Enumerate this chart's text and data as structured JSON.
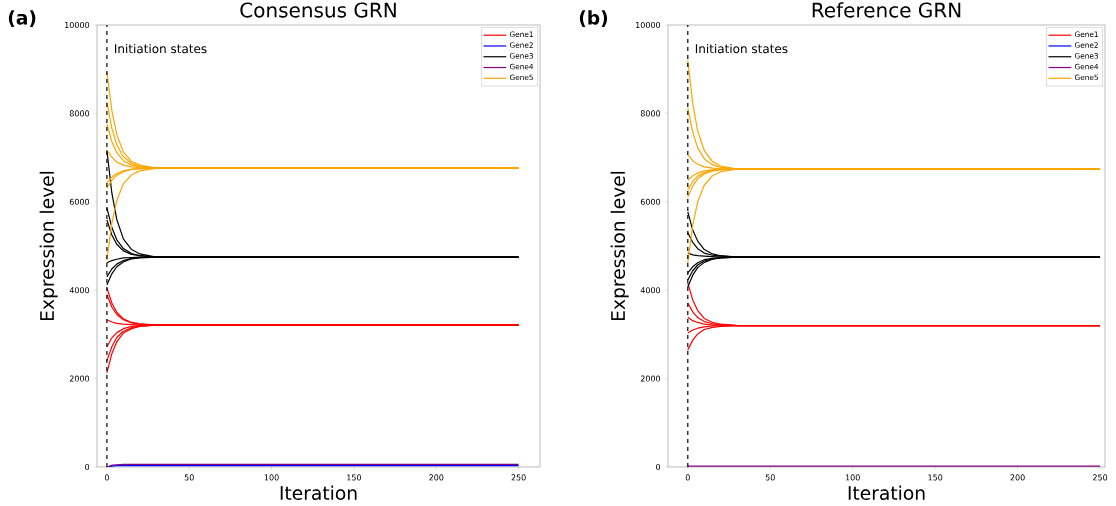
{
  "chart_data": [
    {
      "type": "line",
      "title": "Consensus GRN",
      "xlabel": "Iteration",
      "ylabel": "Expression level",
      "annotations": [
        "(a)"
      ],
      "legend": "top right",
      "x": [
        0,
        3,
        6,
        10,
        15,
        20,
        30,
        250
      ],
      "xlim": [
        -6,
        263
      ],
      "xticks": [
        0,
        50,
        100,
        150,
        200,
        250
      ],
      "ylim": [
        0,
        10000
      ],
      "yticks": [
        0,
        2000,
        4000,
        6000,
        8000,
        10000
      ],
      "ref_lines": [
        {
          "axis": "x",
          "value": 0,
          "label": "Initiation states",
          "color": "#000000",
          "line_style": "dashed"
        }
      ],
      "series": [
        {
          "name": "Gene1",
          "color": "#ff0000",
          "values": [
            4050,
            3710,
            3500,
            3350,
            3270,
            3240,
            3210,
            3210
          ]
        },
        {
          "color": "#ff0000",
          "values": [
            3900,
            3620,
            3450,
            3330,
            3260,
            3230,
            3210,
            3210
          ]
        },
        {
          "color": "#ff0000",
          "values": [
            3330,
            3280,
            3250,
            3230,
            3220,
            3210,
            3210,
            3210
          ]
        },
        {
          "color": "#ff0000",
          "values": [
            2720,
            2920,
            3040,
            3130,
            3180,
            3200,
            3210,
            3210
          ]
        },
        {
          "color": "#ff0000",
          "values": [
            2400,
            2720,
            2930,
            3070,
            3150,
            3190,
            3210,
            3210
          ]
        },
        {
          "color": "#ff0000",
          "values": [
            2130,
            2560,
            2830,
            3030,
            3130,
            3180,
            3210,
            3210
          ]
        },
        {
          "name": "Gene2",
          "color": "#0000ff",
          "values": [
            0,
            20,
            30,
            30,
            30,
            30,
            30,
            30
          ]
        },
        {
          "name": "Gene3",
          "color": "#000000",
          "values": [
            7170,
            6200,
            5600,
            5160,
            4920,
            4820,
            4750,
            4750
          ]
        },
        {
          "color": "#000000",
          "values": [
            5860,
            5420,
            5140,
            4940,
            4830,
            4780,
            4750,
            4750
          ]
        },
        {
          "color": "#000000",
          "values": [
            5590,
            5250,
            5040,
            4890,
            4810,
            4780,
            4750,
            4750
          ]
        },
        {
          "color": "#000000",
          "values": [
            4620,
            4670,
            4700,
            4730,
            4740,
            4750,
            4750,
            4750
          ]
        },
        {
          "color": "#000000",
          "values": [
            4300,
            4480,
            4590,
            4670,
            4720,
            4740,
            4750,
            4750
          ]
        },
        {
          "color": "#000000",
          "values": [
            4120,
            4370,
            4530,
            4640,
            4710,
            4730,
            4750,
            4750
          ]
        },
        {
          "name": "Gene4",
          "color": "#800080",
          "values": [
            0,
            40,
            50,
            60,
            60,
            60,
            60,
            60
          ]
        },
        {
          "name": "Gene5",
          "color": "#ffa500",
          "values": [
            8940,
            8070,
            7520,
            7130,
            6910,
            6830,
            6760,
            6760
          ]
        },
        {
          "color": "#ffa500",
          "values": [
            8260,
            7660,
            7290,
            7020,
            6870,
            6810,
            6760,
            6760
          ]
        },
        {
          "color": "#ffa500",
          "values": [
            7760,
            7360,
            7110,
            6930,
            6830,
            6790,
            6760,
            6760
          ]
        },
        {
          "color": "#ffa500",
          "values": [
            7170,
            7010,
            6900,
            6830,
            6790,
            6770,
            6760,
            6760
          ]
        },
        {
          "color": "#ffa500",
          "values": [
            6420,
            6560,
            6640,
            6700,
            6740,
            6750,
            6760,
            6760
          ]
        },
        {
          "color": "#ffa500",
          "values": [
            6310,
            6490,
            6600,
            6680,
            6730,
            6750,
            6760,
            6760
          ]
        },
        {
          "color": "#ffa500",
          "values": [
            4680,
            5510,
            6030,
            6410,
            6610,
            6700,
            6760,
            6760
          ]
        }
      ]
    },
    {
      "type": "line",
      "title": "Reference GRN",
      "xlabel": "Iteration",
      "ylabel": "Expression level",
      "annotations": [
        "(b)"
      ],
      "legend": "top right",
      "x": [
        0,
        3,
        6,
        10,
        15,
        20,
        30,
        250
      ],
      "xlim": [
        -12,
        253
      ],
      "xticks": [
        0,
        50,
        100,
        150,
        200,
        250
      ],
      "ylim": [
        0,
        10000
      ],
      "yticks": [
        0,
        2000,
        4000,
        6000,
        8000,
        10000
      ],
      "ref_lines": [
        {
          "axis": "x",
          "value": 0,
          "label": "Initiation states",
          "color": "#000000",
          "line_style": "dashed"
        }
      ],
      "series": [
        {
          "name": "Gene1",
          "color": "#ff0000",
          "values": [
            4160,
            3780,
            3540,
            3360,
            3270,
            3230,
            3200,
            3200
          ]
        },
        {
          "color": "#ff0000",
          "values": [
            3710,
            3510,
            3380,
            3290,
            3240,
            3220,
            3200,
            3200
          ]
        },
        {
          "color": "#ff0000",
          "values": [
            3390,
            3310,
            3270,
            3230,
            3210,
            3210,
            3200,
            3200
          ]
        },
        {
          "color": "#ff0000",
          "values": [
            3030,
            3100,
            3140,
            3170,
            3190,
            3190,
            3200,
            3200
          ]
        },
        {
          "color": "#ff0000",
          "values": [
            2650,
            2870,
            3010,
            3110,
            3160,
            3180,
            3200,
            3200
          ]
        },
        {
          "name": "Gene2",
          "color": "#0000ff",
          "values": [
            null,
            null,
            null,
            null,
            null,
            null,
            null,
            null
          ]
        },
        {
          "name": "Gene3",
          "color": "#000000",
          "values": [
            5770,
            5360,
            5110,
            4920,
            4820,
            4780,
            4750,
            4750
          ]
        },
        {
          "color": "#000000",
          "values": [
            5300,
            5080,
            4940,
            4840,
            4790,
            4770,
            4750,
            4750
          ]
        },
        {
          "color": "#000000",
          "values": [
            4840,
            4800,
            4780,
            4770,
            4760,
            4750,
            4750,
            4750
          ]
        },
        {
          "color": "#000000",
          "values": [
            4390,
            4530,
            4620,
            4690,
            4720,
            4740,
            4750,
            4750
          ]
        },
        {
          "color": "#000000",
          "values": [
            4230,
            4440,
            4570,
            4660,
            4710,
            4730,
            4750,
            4750
          ]
        },
        {
          "color": "#000000",
          "values": [
            4070,
            4340,
            4510,
            4630,
            4700,
            4730,
            4750,
            4750
          ]
        },
        {
          "name": "Gene4",
          "color": "#800080",
          "values": [
            20,
            20,
            20,
            20,
            20,
            20,
            20,
            20
          ]
        },
        {
          "name": "Gene5",
          "color": "#ffa500",
          "values": [
            9200,
            8220,
            7600,
            7160,
            6910,
            6810,
            6740,
            6740
          ]
        },
        {
          "color": "#ffa500",
          "values": [
            8120,
            7570,
            7220,
            6970,
            6840,
            6780,
            6740,
            6740
          ]
        },
        {
          "color": "#ffa500",
          "values": [
            7060,
            6930,
            6850,
            6790,
            6760,
            6750,
            6740,
            6740
          ]
        },
        {
          "color": "#ffa500",
          "values": [
            6490,
            6590,
            6650,
            6700,
            6720,
            6730,
            6740,
            6740
          ]
        },
        {
          "color": "#ffa500",
          "values": [
            6270,
            6460,
            6580,
            6660,
            6710,
            6730,
            6740,
            6740
          ]
        },
        {
          "color": "#ffa500",
          "values": [
            6110,
            6360,
            6520,
            6630,
            6700,
            6720,
            6740,
            6740
          ]
        },
        {
          "color": "#ffa500",
          "values": [
            4620,
            5470,
            6000,
            6380,
            6590,
            6680,
            6740,
            6740
          ]
        }
      ]
    }
  ]
}
